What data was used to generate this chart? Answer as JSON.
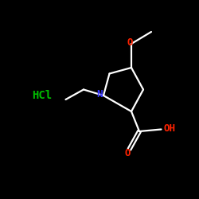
{
  "background_color": "#000000",
  "bond_color": "#ffffff",
  "N_color": "#3333ff",
  "O_color": "#ff2200",
  "Cl_color": "#00bb00",
  "label_N": "N",
  "label_O_top": "O",
  "label_O_bot": "O",
  "label_OH": "OH",
  "label_HCl": "HCl",
  "figsize": [
    2.5,
    2.5
  ],
  "dpi": 100,
  "lw": 1.6
}
